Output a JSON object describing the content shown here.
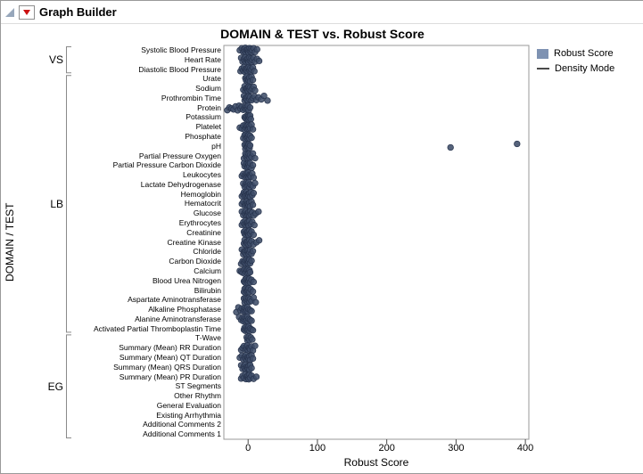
{
  "window": {
    "title": "Graph Builder"
  },
  "chart_data": {
    "type": "scatter",
    "title": "DOMAIN & TEST vs. Robust Score",
    "xlabel": "Robust Score",
    "ylabel": "DOMAIN / TEST",
    "xlim": [
      -35,
      405
    ],
    "x_ticks": [
      0,
      100,
      200,
      300,
      400
    ],
    "grid": false,
    "marker_color": "#3f4d69",
    "marker_edge": "#27334c",
    "legend": {
      "position": "top-right",
      "items": [
        {
          "label": "Robust Score",
          "swatch": "square",
          "color": "#7e92b2"
        },
        {
          "label": "Density Mode",
          "swatch": "line",
          "color": "#4a4a4a"
        }
      ]
    },
    "groups": [
      {
        "label": "VS",
        "tests": [
          {
            "label": "Systolic Blood Pressure",
            "values": [
              -12,
              -9,
              -7,
              -6,
              -5,
              -4,
              -3,
              -2,
              -1,
              0,
              0,
              1,
              2,
              3,
              4,
              5,
              6,
              8,
              10,
              13
            ]
          },
          {
            "label": "Heart Rate",
            "values": [
              -10,
              -8,
              -6,
              -5,
              -4,
              -3,
              -2,
              -1,
              0,
              0,
              1,
              2,
              3,
              4,
              5,
              6,
              8,
              10,
              13,
              16
            ]
          },
          {
            "label": "Diastolic Blood Pressure",
            "values": [
              -11,
              -9,
              -7,
              -6,
              -5,
              -4,
              -3,
              -2,
              -1,
              0,
              1,
              2,
              3,
              4,
              5,
              7,
              9
            ]
          }
        ]
      },
      {
        "label": "LB",
        "tests": [
          {
            "label": "Urate",
            "values": [
              -4,
              -3,
              -2,
              -1,
              0,
              0,
              1,
              2,
              3,
              5,
              7
            ]
          },
          {
            "label": "Sodium",
            "values": [
              -7,
              -5,
              -4,
              -3,
              -2,
              -1,
              0,
              0,
              1,
              2,
              3,
              4,
              6,
              8,
              10
            ]
          },
          {
            "label": "Prothrombin Time",
            "values": [
              -6,
              -5,
              -4,
              -3,
              -2,
              -1,
              0,
              1,
              2,
              3,
              5,
              7,
              9,
              12,
              15,
              19,
              23,
              28
            ]
          },
          {
            "label": "Protein",
            "values": [
              -30,
              -27,
              -24,
              -21,
              -18,
              -15,
              -13,
              -11,
              -9,
              -7,
              -5,
              -4,
              -3,
              -2,
              -1,
              0,
              1,
              3
            ]
          },
          {
            "label": "Potassium",
            "values": [
              -5,
              -4,
              -3,
              -2,
              -1,
              0,
              0,
              1,
              1,
              2,
              3,
              4
            ]
          },
          {
            "label": "Platelet",
            "values": [
              -12,
              -9,
              -7,
              -5,
              -4,
              -3,
              -2,
              -1,
              0,
              0,
              1,
              2,
              3,
              5,
              7
            ]
          },
          {
            "label": "Phosphate",
            "values": [
              -7,
              -5,
              -4,
              -3,
              -2,
              -1,
              0,
              0,
              1,
              2,
              3,
              5
            ]
          },
          {
            "label": "pH",
            "values": [
              -5,
              -4,
              -3,
              -2,
              -1,
              0,
              0,
              1,
              2,
              3,
              292,
              388
            ]
          },
          {
            "label": "Partial Pressure Oxygen",
            "values": [
              -6,
              -4,
              -3,
              -2,
              -1,
              0,
              1,
              2,
              3,
              5,
              7,
              10
            ]
          },
          {
            "label": "Partial Pressure Carbon Dioxide",
            "values": [
              -6,
              -5,
              -3,
              -2,
              -1,
              0,
              0,
              1,
              2,
              3,
              5,
              7
            ]
          },
          {
            "label": "Leukocytes",
            "values": [
              -9,
              -7,
              -5,
              -4,
              -3,
              -2,
              -1,
              0,
              0,
              1,
              2,
              3,
              4,
              6,
              8
            ]
          },
          {
            "label": "Lactate Dehydrogenase",
            "values": [
              -7,
              -5,
              -4,
              -3,
              -2,
              -1,
              0,
              1,
              2,
              3,
              5,
              7,
              10
            ]
          },
          {
            "label": "Hemoglobin",
            "values": [
              -9,
              -7,
              -6,
              -5,
              -4,
              -3,
              -2,
              -1,
              0,
              0,
              1,
              2,
              3,
              4,
              6,
              8
            ]
          },
          {
            "label": "Hematocrit",
            "values": [
              -9,
              -7,
              -5,
              -4,
              -3,
              -2,
              -1,
              -1,
              0,
              1,
              2,
              3,
              5,
              7
            ]
          },
          {
            "label": "Glucose",
            "values": [
              -9,
              -7,
              -5,
              -4,
              -3,
              -2,
              -1,
              0,
              0,
              1,
              2,
              3,
              4,
              6,
              8,
              11,
              15
            ]
          },
          {
            "label": "Erythrocytes",
            "values": [
              -9,
              -7,
              -5,
              -4,
              -3,
              -2,
              -1,
              0,
              0,
              1,
              2,
              4,
              6,
              9
            ]
          },
          {
            "label": "Creatinine",
            "values": [
              -6,
              -5,
              -4,
              -3,
              -2,
              -1,
              0,
              0,
              1,
              2,
              3,
              5,
              8
            ]
          },
          {
            "label": "Creatine Kinase",
            "values": [
              -6,
              -5,
              -4,
              -3,
              -2,
              -1,
              0,
              1,
              2,
              3,
              5,
              8,
              12,
              16
            ]
          },
          {
            "label": "Chloride",
            "values": [
              -9,
              -7,
              -6,
              -5,
              -4,
              -3,
              -2,
              -1,
              0,
              0,
              1,
              2,
              3,
              5,
              7
            ]
          },
          {
            "label": "Carbon Dioxide",
            "values": [
              -10,
              -8,
              -6,
              -5,
              -4,
              -3,
              -2,
              -1,
              0,
              0,
              1,
              2,
              3,
              5
            ]
          },
          {
            "label": "Calcium",
            "values": [
              -12,
              -10,
              -8,
              -6,
              -5,
              -4,
              -3,
              -2,
              -1,
              0,
              0,
              1,
              2,
              3
            ]
          },
          {
            "label": "Blood Urea Nitrogen",
            "values": [
              -6,
              -5,
              -4,
              -3,
              -2,
              -1,
              0,
              0,
              1,
              2,
              3,
              5,
              8
            ]
          },
          {
            "label": "Bilirubin",
            "values": [
              -6,
              -5,
              -4,
              -3,
              -2,
              -1,
              0,
              0,
              1,
              2,
              4,
              7
            ]
          },
          {
            "label": "Aspartate Aminotransferase",
            "values": [
              -6,
              -5,
              -4,
              -3,
              -2,
              -1,
              0,
              1,
              2,
              3,
              5,
              8,
              11
            ]
          },
          {
            "label": "Alkaline Phosphatase",
            "values": [
              -17,
              -14,
              -11,
              -9,
              -7,
              -6,
              -5,
              -4,
              -3,
              -2,
              -1,
              0,
              1,
              3,
              5
            ]
          },
          {
            "label": "Alanine Aminotransferase",
            "values": [
              -13,
              -10,
              -8,
              -7,
              -6,
              -5,
              -4,
              -3,
              -2,
              -1,
              0,
              1,
              3,
              5
            ]
          },
          {
            "label": "Activated Partial Thromboplastin Time",
            "values": [
              -6,
              -5,
              -4,
              -3,
              -2,
              -1,
              0,
              0,
              1,
              2,
              3,
              5,
              7
            ]
          }
        ]
      },
      {
        "label": "EG",
        "tests": [
          {
            "label": "T-Wave",
            "values": [
              -2,
              -1,
              0,
              1,
              2,
              4,
              6
            ]
          },
          {
            "label": "Summary (Mean) RR Duration",
            "values": [
              -10,
              -8,
              -6,
              -4,
              -3,
              -2,
              -1,
              0,
              1,
              2,
              3,
              5,
              7,
              10
            ]
          },
          {
            "label": "Summary (Mean) QT Duration",
            "values": [
              -12,
              -9,
              -7,
              -5,
              -4,
              -3,
              -2,
              -1,
              0,
              1,
              2,
              3,
              5,
              7
            ]
          },
          {
            "label": "Summary (Mean) QRS Duration",
            "values": [
              -10,
              -8,
              -6,
              -5,
              -4,
              -3,
              -2,
              -1,
              0,
              1,
              2,
              3,
              5
            ]
          },
          {
            "label": "Summary (Mean) PR Duration",
            "values": [
              -10,
              -8,
              -6,
              -4,
              -3,
              -2,
              -1,
              0,
              0,
              1,
              2,
              3,
              5,
              8,
              12
            ]
          },
          {
            "label": "ST Segments",
            "values": []
          },
          {
            "label": "Other Rhythm",
            "values": []
          },
          {
            "label": "General Evaluation",
            "values": []
          },
          {
            "label": "Existing Arrhythmia",
            "values": []
          },
          {
            "label": "Additional Comments 2",
            "values": []
          },
          {
            "label": "Additional Comments 1",
            "values": []
          }
        ]
      }
    ]
  }
}
